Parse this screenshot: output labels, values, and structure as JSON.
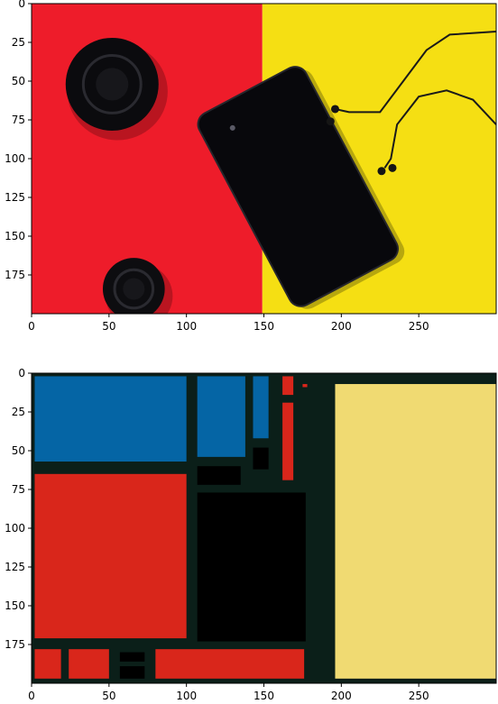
{
  "chart_data": [
    {
      "type": "image",
      "x_ticks": [
        0,
        50,
        100,
        150,
        200,
        250
      ],
      "y_ticks": [
        0,
        25,
        50,
        75,
        100,
        125,
        150,
        175
      ],
      "xlim": [
        0,
        300
      ],
      "ylim": [
        200,
        0
      ],
      "image": {
        "background_left": "#ee1c2a",
        "background_right": "#f5df13",
        "split_x": 149,
        "objects": [
          {
            "name": "lens-cap",
            "shape": "circle",
            "cx": 52,
            "cy": 52,
            "r": 30,
            "color": "#0b0b0e"
          },
          {
            "name": "phone",
            "shape": "rotated-rect",
            "cx": 172,
            "cy": 118,
            "w": 78,
            "h": 140,
            "angle": -28,
            "color": "#08080c"
          },
          {
            "name": "second-lens-cap",
            "shape": "circle",
            "cx": 66,
            "cy": 184,
            "r": 20,
            "color": "#0d0d10"
          },
          {
            "name": "earphones",
            "shape": "cable",
            "color": "#1a1a1a"
          }
        ]
      }
    },
    {
      "type": "heatmap",
      "x_ticks": [
        0,
        50,
        100,
        150,
        200,
        250
      ],
      "y_ticks": [
        0,
        25,
        50,
        75,
        100,
        125,
        150,
        175
      ],
      "xlim": [
        0,
        300
      ],
      "ylim": [
        200,
        0
      ],
      "background": "#0b1f19",
      "rects": [
        {
          "x": 2,
          "y": 2,
          "w": 98,
          "h": 55,
          "color": "#0565a5"
        },
        {
          "x": 107,
          "y": 2,
          "w": 31,
          "h": 52,
          "color": "#0565a5"
        },
        {
          "x": 143,
          "y": 2,
          "w": 10,
          "h": 40,
          "color": "#0565a5"
        },
        {
          "x": 162,
          "y": 2,
          "w": 7,
          "h": 12,
          "color": "#d9261b"
        },
        {
          "x": 175,
          "y": 7,
          "w": 3,
          "h": 2,
          "color": "#d9261b"
        },
        {
          "x": 196,
          "y": 7,
          "w": 107,
          "h": 190,
          "color": "#f0da72"
        },
        {
          "x": 162,
          "y": 19,
          "w": 7,
          "h": 50,
          "color": "#d9261b"
        },
        {
          "x": 143,
          "y": 48,
          "w": 10,
          "h": 14,
          "color": "#000000"
        },
        {
          "x": 107,
          "y": 60,
          "w": 28,
          "h": 12,
          "color": "#000000"
        },
        {
          "x": 2,
          "y": 65,
          "w": 98,
          "h": 106,
          "color": "#d9261b"
        },
        {
          "x": 107,
          "y": 77,
          "w": 70,
          "h": 96,
          "color": "#000000"
        },
        {
          "x": 2,
          "y": 178,
          "w": 17,
          "h": 19,
          "color": "#d9261b"
        },
        {
          "x": 24,
          "y": 178,
          "w": 26,
          "h": 19,
          "color": "#d9261b"
        },
        {
          "x": 57,
          "y": 180,
          "w": 16,
          "h": 6,
          "color": "#000000"
        },
        {
          "x": 57,
          "y": 189,
          "w": 16,
          "h": 8,
          "color": "#000000"
        },
        {
          "x": 80,
          "y": 178,
          "w": 96,
          "h": 19,
          "color": "#d9261b"
        }
      ]
    }
  ]
}
